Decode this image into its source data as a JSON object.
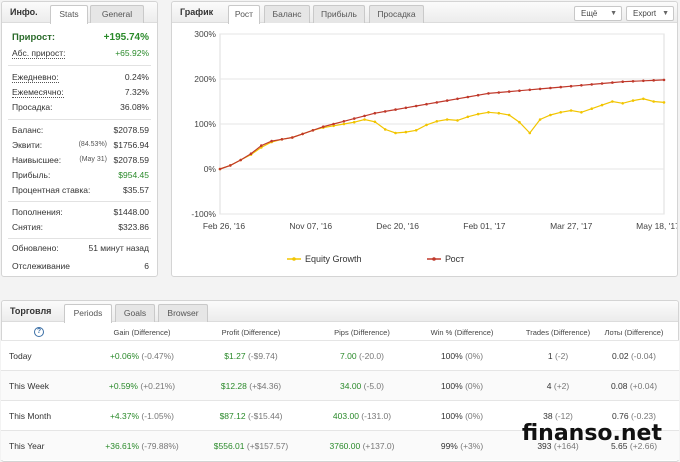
{
  "info": {
    "title": "Инфо.",
    "tabs": [
      "Stats",
      "General"
    ],
    "rows": [
      {
        "label": "Прирост:",
        "value": "+195.74%"
      },
      {
        "label": "Абс. прирост:",
        "value": "+65.92%"
      },
      {
        "label": "Ежедневно:",
        "value": "0.24%"
      },
      {
        "label": "Ежемесячно:",
        "value": "7.32%"
      },
      {
        "label": "Просадка:",
        "value": "36.08%"
      },
      {
        "label": "Баланс:",
        "value": "$2078.59"
      },
      {
        "label": "Эквити:",
        "sub": "(84.53%)",
        "value": "$1756.94"
      },
      {
        "label": "Наивысшее:",
        "sub": "(May 31)",
        "value": "$2078.59"
      },
      {
        "label": "Прибыль:",
        "value": "$954.45"
      },
      {
        "label": "Процентная ставка:",
        "value": "$35.57"
      },
      {
        "label": "Пополнения:",
        "value": "$1448.00"
      },
      {
        "label": "Снятия:",
        "value": "$323.86"
      },
      {
        "label": "Обновлено:",
        "value": "51 минут назад"
      },
      {
        "label": "Отслеживание",
        "value": "6"
      }
    ]
  },
  "chart_panel": {
    "title": "График",
    "tabs": [
      "Рост",
      "Баланс",
      "Прибыль",
      "Просадка"
    ],
    "more_button": "Ещё",
    "export_button": "Export"
  },
  "chart_data": {
    "type": "line",
    "y_tick_labels": [
      "300%",
      "200%",
      "100%",
      "0%",
      "-100%"
    ],
    "ylim": [
      -100,
      300
    ],
    "x_tick_labels": [
      "Feb 26, '16",
      "Nov 07, '16",
      "Dec 20, '16",
      "Feb 01, '17",
      "Mar 27, '17",
      "May 18, '17"
    ],
    "series": [
      {
        "name": "Equity Growth",
        "color": "#f2c500",
        "values": [
          0,
          8,
          20,
          32,
          48,
          60,
          66,
          70,
          78,
          86,
          92,
          96,
          100,
          104,
          110,
          105,
          88,
          80,
          82,
          86,
          98,
          106,
          110,
          108,
          116,
          122,
          126,
          124,
          120,
          104,
          80,
          110,
          120,
          126,
          130,
          126,
          134,
          142,
          150,
          146,
          152,
          156,
          150,
          148
        ]
      },
      {
        "name": "Рост",
        "color": "#c0392b",
        "values": [
          0,
          8,
          20,
          34,
          52,
          62,
          66,
          70,
          78,
          86,
          94,
          100,
          106,
          112,
          118,
          124,
          128,
          132,
          136,
          140,
          144,
          148,
          152,
          156,
          160,
          164,
          168,
          170,
          172,
          174,
          176,
          178,
          180,
          182,
          184,
          186,
          188,
          190,
          192,
          194,
          195,
          196,
          197,
          198
        ]
      }
    ]
  },
  "trading": {
    "title": "Торговля",
    "tabs": [
      "Periods",
      "Goals",
      "Browser"
    ],
    "help_icon": "?",
    "columns": [
      "Gain (Difference)",
      "Profit (Difference)",
      "Pips (Difference)",
      "Win % (Difference)",
      "Trades (Difference)",
      "Лоты (Difference)"
    ],
    "rows": [
      {
        "label": "Today",
        "gain": "+0.06%",
        "gain_d": "(-0.47%)",
        "profit": "$1.27",
        "profit_d": "(-$9.74)",
        "pips": "7.00",
        "pips_d": "(-20.0)",
        "win": "100%",
        "win_d": "(0%)",
        "trades": "1",
        "trades_d": "(-2)",
        "lots": "0.02",
        "lots_d": "(-0.04)"
      },
      {
        "label": "This Week",
        "gain": "+0.59%",
        "gain_d": "(+0.21%)",
        "profit": "$12.28",
        "profit_d": "(+$4.36)",
        "pips": "34.00",
        "pips_d": "(-5.0)",
        "win": "100%",
        "win_d": "(0%)",
        "trades": "4",
        "trades_d": "(+2)",
        "lots": "0.08",
        "lots_d": "(+0.04)"
      },
      {
        "label": "This Month",
        "gain": "+4.37%",
        "gain_d": "(-1.05%)",
        "profit": "$87.12",
        "profit_d": "(-$15.44)",
        "pips": "403.00",
        "pips_d": "(-131.0)",
        "win": "100%",
        "win_d": "(0%)",
        "trades": "38",
        "trades_d": "(-12)",
        "lots": "0.76",
        "lots_d": "(-0.23)"
      },
      {
        "label": "This Year",
        "gain": "+36.61%",
        "gain_d": "(-79.88%)",
        "profit": "$556.01",
        "profit_d": "(+$157.57)",
        "pips": "3760.00",
        "pips_d": "(+137.0)",
        "win": "99%",
        "win_d": "(+3%)",
        "trades": "393",
        "trades_d": "(+164)",
        "lots": "5.65",
        "lots_d": "(+2.66)"
      }
    ]
  },
  "watermark": "finanso.net"
}
